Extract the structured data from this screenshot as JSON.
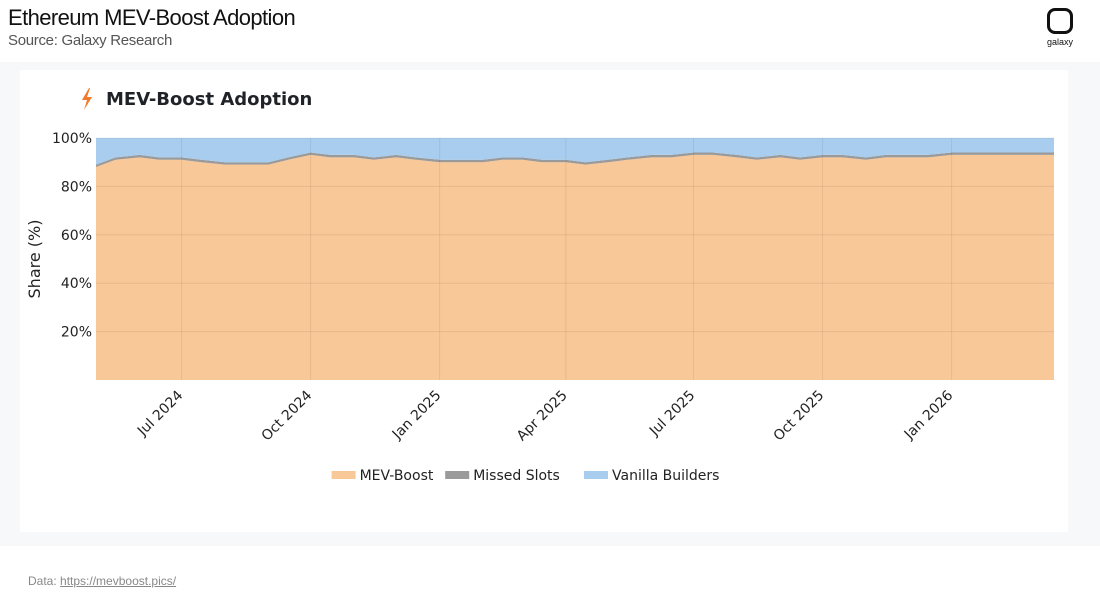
{
  "header": {
    "title": "Ethereum MEV-Boost Adoption",
    "subtitle": "Source: Galaxy Research"
  },
  "logo": {
    "text": "galaxy",
    "icon": "galaxy-logo-icon"
  },
  "card": {
    "title": "MEV-Boost Adoption",
    "icon": "lightning-bolt-icon"
  },
  "footer": {
    "label": "Data:",
    "link_text": "https://mevboost.pics/"
  },
  "colors": {
    "mev_boost": "#f8c898",
    "missed": "#9a9a9a",
    "vanilla": "#a9cdef",
    "bolt": "#f07a2c"
  },
  "chart_data": {
    "type": "area",
    "stacked": true,
    "ylabel": "Share (%)",
    "xlabel": "",
    "ylim": [
      0,
      100
    ],
    "yticks": [
      20,
      40,
      60,
      80,
      100
    ],
    "ytick_labels": [
      "20%",
      "40%",
      "60%",
      "80%",
      "100%"
    ],
    "xlim": [
      "2024-05-01",
      "2026-03-15"
    ],
    "xticks": [
      "2024-07-01",
      "2024-10-01",
      "2025-01-01",
      "2025-04-01",
      "2025-07-01",
      "2025-10-01",
      "2026-01-01"
    ],
    "xtick_labels": [
      "Jul 2024",
      "Oct 2024",
      "Jan 2025",
      "Apr 2025",
      "Jul 2025",
      "Oct 2025",
      "Jan 2026"
    ],
    "grid": true,
    "legend_position": "bottom-center",
    "x": [
      "2024-05-01",
      "2024-05-15",
      "2024-06-01",
      "2024-06-15",
      "2024-07-01",
      "2024-07-15",
      "2024-08-01",
      "2024-08-15",
      "2024-09-01",
      "2024-09-15",
      "2024-10-01",
      "2024-10-15",
      "2024-11-01",
      "2024-11-15",
      "2024-12-01",
      "2024-12-15",
      "2025-01-01",
      "2025-01-15",
      "2025-02-01",
      "2025-02-15",
      "2025-03-01",
      "2025-03-15",
      "2025-04-01",
      "2025-04-15",
      "2025-05-01",
      "2025-05-15",
      "2025-06-01",
      "2025-06-15",
      "2025-07-01",
      "2025-07-15",
      "2025-08-01",
      "2025-08-15",
      "2025-09-01",
      "2025-09-15",
      "2025-10-01",
      "2025-10-15",
      "2025-11-01",
      "2025-11-15",
      "2025-12-01",
      "2025-12-15",
      "2026-01-01",
      "2026-01-15",
      "2026-02-01",
      "2026-02-15",
      "2026-03-01",
      "2026-03-15"
    ],
    "series": [
      {
        "name": "MEV-Boost",
        "values": [
          88,
          91,
          92,
          91,
          91,
          90,
          89,
          89,
          89,
          91,
          93,
          92,
          92,
          91,
          92,
          91,
          90,
          90,
          90,
          91,
          91,
          90,
          90,
          89,
          90,
          91,
          92,
          92,
          93,
          93,
          92,
          91,
          92,
          91,
          92,
          92,
          91,
          92,
          92,
          92,
          93,
          93,
          93,
          93,
          93,
          93
        ]
      },
      {
        "name": "Missed Slots",
        "values": [
          1,
          1,
          1,
          1,
          1,
          1,
          1,
          1,
          1,
          1,
          1,
          1,
          1,
          1,
          1,
          1,
          1,
          1,
          1,
          1,
          1,
          1,
          1,
          1,
          1,
          1,
          1,
          1,
          1,
          1,
          1,
          1,
          1,
          1,
          1,
          1,
          1,
          1,
          1,
          1,
          1,
          1,
          1,
          1,
          1,
          1
        ]
      },
      {
        "name": "Vanilla Builders",
        "values": [
          11,
          8,
          7,
          8,
          8,
          9,
          10,
          10,
          10,
          8,
          6,
          7,
          7,
          8,
          7,
          8,
          9,
          9,
          9,
          8,
          8,
          9,
          9,
          10,
          9,
          8,
          7,
          7,
          6,
          6,
          7,
          8,
          7,
          8,
          7,
          7,
          8,
          7,
          7,
          7,
          6,
          6,
          6,
          6,
          6,
          6
        ]
      }
    ]
  }
}
